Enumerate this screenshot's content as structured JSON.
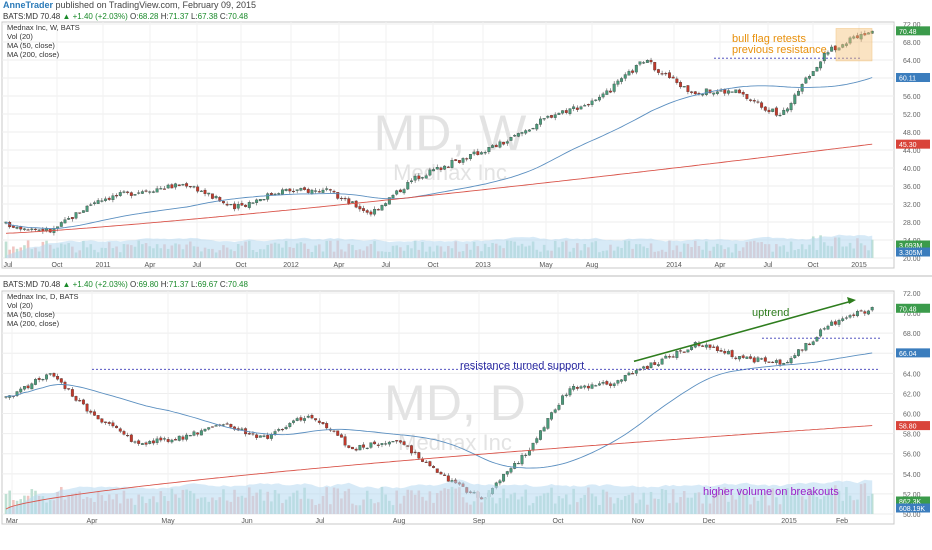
{
  "header": {
    "author": "AnneTrader",
    "text": "published on TradingView.com, February 09, 2015"
  },
  "panels": [
    {
      "id": "weekly",
      "symbol_line": {
        "symbol": "BATS:MD",
        "last": "70.48",
        "change": "▲ +1.40 (+2.03%)",
        "open": "68.28",
        "high": "71.37",
        "low": "67.38",
        "close": "70.48"
      },
      "legend": [
        "Mednax Inc, W, BATS",
        "Vol (20)",
        "MA (50, close)",
        "MA (200, close)"
      ],
      "watermark": {
        "big": "MD, W",
        "small": "Mednax Inc"
      },
      "annotations": [
        {
          "text": "bull flag retests",
          "color": "#e8900c"
        },
        {
          "text": "previous resistance",
          "color": "#e8900c"
        }
      ],
      "badges": [
        {
          "text": "70.48",
          "color": "#3b9b4b"
        },
        {
          "text": "60.11",
          "color": "#3b7dbd"
        },
        {
          "text": "45.30",
          "color": "#d9443a"
        },
        {
          "text": "3.693M",
          "color": "#3b9b4b"
        },
        {
          "text": "3.305M",
          "color": "#3b7dbd"
        }
      ],
      "xticks": [
        "Jul",
        "Oct",
        "2011",
        "Apr",
        "Jul",
        "Oct",
        "2012",
        "Apr",
        "Jul",
        "Oct",
        "2013",
        "May",
        "Aug",
        "2014",
        "Apr",
        "Jul",
        "Oct",
        "2015"
      ]
    },
    {
      "id": "daily",
      "symbol_line": {
        "symbol": "BATS:MD",
        "last": "70.48",
        "change": "▲ +1.40 (+2.03%)",
        "open": "69.80",
        "high": "71.37",
        "low": "69.67",
        "close": "70.48"
      },
      "legend": [
        "Mednax Inc, D, BATS",
        "Vol (20)",
        "MA (50, close)",
        "MA (200, close)"
      ],
      "watermark": {
        "big": "MD, D",
        "small": "Mednax Inc"
      },
      "annotations": [
        {
          "text": "uptrend",
          "color": "#2e7d1e"
        },
        {
          "text": "resistance turned support",
          "color": "#2a2aa0"
        },
        {
          "text": "higher volume on breakouts",
          "color": "#9b1fc7"
        }
      ],
      "badges": [
        {
          "text": "70.48",
          "color": "#3b9b4b"
        },
        {
          "text": "66.04",
          "color": "#3b7dbd"
        },
        {
          "text": "58.80",
          "color": "#d9443a"
        },
        {
          "text": "862.3K",
          "color": "#3b9b4b"
        },
        {
          "text": "608.19K",
          "color": "#3b7dbd"
        }
      ],
      "xticks": [
        "Mar",
        "Apr",
        "May",
        "Jun",
        "Jul",
        "Aug",
        "Sep",
        "Oct",
        "Nov",
        "Dec",
        "2015",
        "Feb"
      ]
    }
  ],
  "chart_data": [
    {
      "type": "candlestick",
      "title": "Mednax Inc, W, BATS",
      "interval": "weekly",
      "ylim": [
        20,
        72
      ],
      "yticks": [
        20,
        24,
        28,
        32,
        36,
        40,
        44,
        48,
        52,
        56,
        60,
        64,
        68,
        72
      ],
      "key_closes": [
        {
          "x": "2010-07",
          "y": 27.5
        },
        {
          "x": "2010-10",
          "y": 26
        },
        {
          "x": "2011-01",
          "y": 33
        },
        {
          "x": "2011-04",
          "y": 35
        },
        {
          "x": "2011-07",
          "y": 36.5
        },
        {
          "x": "2011-10",
          "y": 31
        },
        {
          "x": "2012-01",
          "y": 35
        },
        {
          "x": "2012-04",
          "y": 35
        },
        {
          "x": "2012-06",
          "y": 30
        },
        {
          "x": "2012-10",
          "y": 38
        },
        {
          "x": "2013-01",
          "y": 42
        },
        {
          "x": "2013-05",
          "y": 46
        },
        {
          "x": "2013-09",
          "y": 52
        },
        {
          "x": "2013-12",
          "y": 55
        },
        {
          "x": "2014-03",
          "y": 64
        },
        {
          "x": "2014-06",
          "y": 57
        },
        {
          "x": "2014-09",
          "y": 57
        },
        {
          "x": "2014-10",
          "y": 51.5
        },
        {
          "x": "2014-12",
          "y": 66
        },
        {
          "x": "2015-02",
          "y": 70.48
        }
      ],
      "ma50_last": 60.11,
      "ma200_last": 45.3,
      "resistance": 64.4,
      "volume_last": "3.693M",
      "volume_ma_last": "3.305M"
    },
    {
      "type": "candlestick",
      "title": "Mednax Inc, D, BATS",
      "interval": "daily",
      "ylim": [
        50,
        72
      ],
      "yticks": [
        50,
        52,
        54,
        56,
        58,
        60,
        62,
        64,
        66,
        68,
        70,
        72
      ],
      "key_closes": [
        {
          "x": "2014-03-01",
          "y": 61.5
        },
        {
          "x": "2014-03-25",
          "y": 64
        },
        {
          "x": "2014-04-10",
          "y": 60
        },
        {
          "x": "2014-05-01",
          "y": 57
        },
        {
          "x": "2014-06-01",
          "y": 57.5
        },
        {
          "x": "2014-07-01",
          "y": 59
        },
        {
          "x": "2014-07-25",
          "y": 57.5
        },
        {
          "x": "2014-08-01",
          "y": 60
        },
        {
          "x": "2014-08-15",
          "y": 56.5
        },
        {
          "x": "2014-09-05",
          "y": 57.5
        },
        {
          "x": "2014-10-01",
          "y": 54
        },
        {
          "x": "2014-10-15",
          "y": 51.5
        },
        {
          "x": "2014-10-25",
          "y": 56
        },
        {
          "x": "2014-10-28",
          "y": 62.5
        },
        {
          "x": "2014-11-15",
          "y": 63
        },
        {
          "x": "2014-12-01",
          "y": 65
        },
        {
          "x": "2014-12-20",
          "y": 67
        },
        {
          "x": "2015-01-10",
          "y": 65.5
        },
        {
          "x": "2015-01-28",
          "y": 65
        },
        {
          "x": "2015-01-30",
          "y": 68.8
        },
        {
          "x": "2015-02-09",
          "y": 70.48
        }
      ],
      "ma50_last": 66.04,
      "ma200_last": 58.8,
      "support": 64.4,
      "breakout_box_top": 67.5,
      "volume_last": "862.3K",
      "volume_ma_last": "608.19K"
    }
  ]
}
